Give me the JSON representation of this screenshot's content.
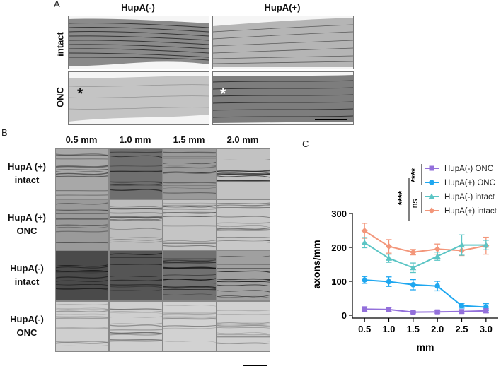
{
  "panel_a": {
    "label": "A",
    "columns": [
      "HupA(-)",
      "HupA(+)"
    ],
    "rows": [
      "intact",
      "ONC"
    ],
    "crush_marker": "*"
  },
  "panel_b": {
    "label": "B",
    "columns": [
      "0.5 mm",
      "1.0 mm",
      "1.5 mm",
      "2.0 mm"
    ],
    "rows": [
      [
        "HupA (+)",
        "intact"
      ],
      [
        "HupA (+)",
        "ONC"
      ],
      [
        "HupA(-)",
        "intact"
      ],
      [
        "HupA(-)",
        "ONC"
      ]
    ]
  },
  "panel_c": {
    "label": "C",
    "significance": {
      "left": "****",
      "left_inner": "ns",
      "right": "****"
    }
  },
  "chart_data": {
    "type": "line",
    "xlabel": "mm",
    "ylabel": "axons/mm",
    "x": [
      0.5,
      1.0,
      1.5,
      2.0,
      2.5,
      3.0
    ],
    "xticks": [
      "0.5",
      "1.0",
      "1.5",
      "2.0",
      "2.5",
      "3.0"
    ],
    "yticks": [
      "0",
      "100",
      "200",
      "300"
    ],
    "ylim": [
      0,
      300
    ],
    "legend_position": "top-right",
    "series": [
      {
        "name": "HupA(-) ONC",
        "color": "#9370db",
        "marker": "square",
        "values": [
          18,
          17,
          9,
          10,
          11,
          13
        ],
        "errors": [
          7,
          6,
          3,
          4,
          5,
          6
        ]
      },
      {
        "name": "HupA(+) ONC",
        "color": "#1ea7f0",
        "marker": "circle",
        "values": [
          104,
          99,
          90,
          86,
          28,
          24
        ],
        "errors": [
          10,
          14,
          15,
          14,
          7,
          10
        ]
      },
      {
        "name": "HupA(-) intact",
        "color": "#5bc5c5",
        "marker": "triangle",
        "values": [
          214,
          168,
          140,
          174,
          207,
          207
        ],
        "errors": [
          15,
          12,
          14,
          12,
          30,
          14
        ]
      },
      {
        "name": "HupA(+) intact",
        "color": "#f3967a",
        "marker": "diamond",
        "values": [
          249,
          203,
          186,
          195,
          191,
          205
        ],
        "errors": [
          22,
          20,
          8,
          15,
          15,
          25
        ]
      }
    ]
  }
}
